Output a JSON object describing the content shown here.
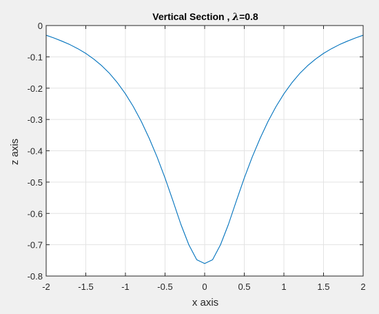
{
  "chart_data": {
    "type": "line",
    "title": "Vertical Section , λ=0.8",
    "title_parts": {
      "prefix": "Vertical Section , ",
      "symbol": "λ",
      "suffix": "=0.8"
    },
    "xlabel": "x axis",
    "ylabel": "z axis",
    "xlim": [
      -2,
      2
    ],
    "ylim": [
      -0.8,
      0
    ],
    "xticks": [
      -2,
      -1.5,
      -1,
      -0.5,
      0,
      0.5,
      1,
      1.5,
      2
    ],
    "xtick_labels": [
      "-2",
      "-1.5",
      "-1",
      "-0.5",
      "0",
      "0.5",
      "1",
      "1.5",
      "2"
    ],
    "yticks": [
      0,
      -0.1,
      -0.2,
      -0.3,
      -0.4,
      -0.5,
      -0.6,
      -0.7,
      -0.8
    ],
    "ytick_labels": [
      "0",
      "-0.1",
      "-0.2",
      "-0.3",
      "-0.4",
      "-0.5",
      "-0.6",
      "-0.7",
      "-0.8"
    ],
    "grid": true,
    "background": "#f0f0f0",
    "axes_background": "#ffffff",
    "grid_color": "#e3e3e3",
    "axis_color": "#262626",
    "series": [
      {
        "color": "#0072bd",
        "x": [
          -2.0,
          -1.9,
          -1.8,
          -1.7,
          -1.6,
          -1.5,
          -1.4,
          -1.3,
          -1.2,
          -1.1,
          -1.0,
          -0.9,
          -0.8,
          -0.7,
          -0.6,
          -0.5,
          -0.4,
          -0.3,
          -0.2,
          -0.1,
          0.0,
          0.1,
          0.2,
          0.3,
          0.4,
          0.5,
          0.6,
          0.7,
          0.8,
          0.9,
          1.0,
          1.1,
          1.2,
          1.3,
          1.4,
          1.5,
          1.6,
          1.7,
          1.8,
          1.9,
          2.0
        ],
        "y": [
          -0.031,
          -0.04,
          -0.05,
          -0.061,
          -0.074,
          -0.089,
          -0.107,
          -0.128,
          -0.153,
          -0.183,
          -0.218,
          -0.259,
          -0.306,
          -0.36,
          -0.42,
          -0.487,
          -0.56,
          -0.635,
          -0.7,
          -0.748,
          -0.76,
          -0.748,
          -0.7,
          -0.635,
          -0.56,
          -0.487,
          -0.42,
          -0.36,
          -0.306,
          -0.259,
          -0.218,
          -0.183,
          -0.153,
          -0.128,
          -0.107,
          -0.089,
          -0.074,
          -0.061,
          -0.05,
          -0.04,
          -0.031
        ]
      }
    ]
  }
}
